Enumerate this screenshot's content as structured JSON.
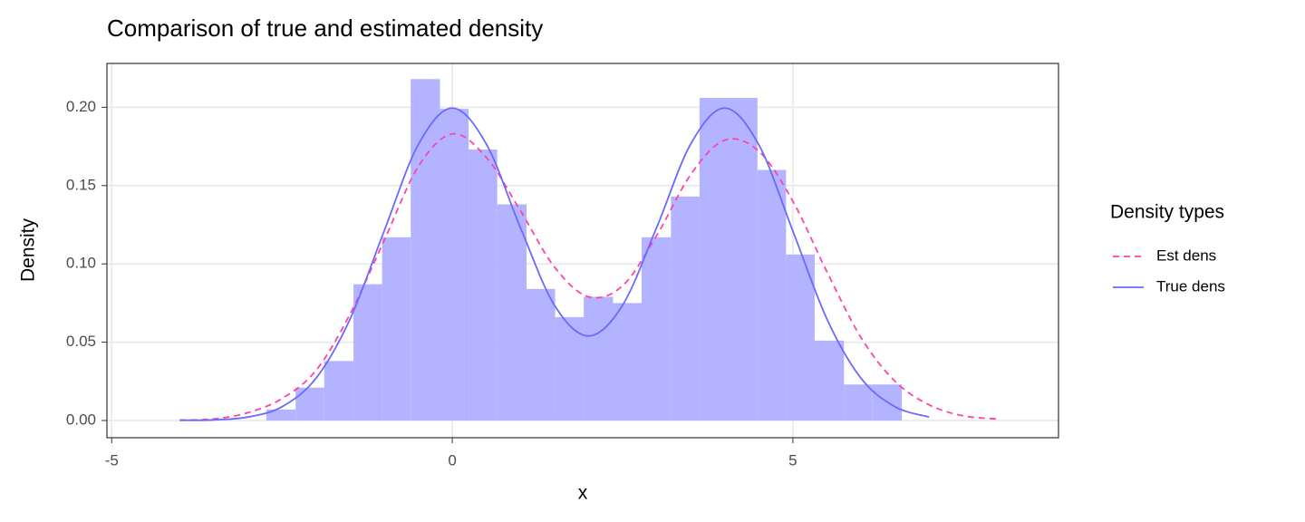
{
  "chart_data": {
    "type": "histogram",
    "title": "Comparison of true and estimated density",
    "x_label": "x",
    "y_label": "Density",
    "legend_title": "Density types",
    "legend_position": "right",
    "grid": true,
    "xlim": [
      -5.07,
      8.9
    ],
    "ylim": [
      -0.011,
      0.228
    ],
    "xticks": [
      -5,
      0,
      5
    ],
    "yticks": [
      {
        "value": 0,
        "label": "0.00"
      },
      {
        "value": 0.05,
        "label": "0.05"
      },
      {
        "value": 0.1,
        "label": "0.10"
      },
      {
        "value": 0.15,
        "label": "0.15"
      },
      {
        "value": 0.2,
        "label": "0.20"
      }
    ],
    "histogram": {
      "color": "#b3b3ff",
      "bins": [
        -2.73,
        -2.3,
        -1.88,
        -1.45,
        -1.03,
        -0.61,
        -0.18,
        0.24,
        0.66,
        1.09,
        1.51,
        1.93,
        2.36,
        2.78,
        3.21,
        3.63,
        4.05,
        4.48,
        4.9,
        5.32,
        5.75,
        6.17,
        6.6
      ],
      "values": [
        0.007,
        0.021,
        0.038,
        0.087,
        0.117,
        0.218,
        0.199,
        0.173,
        0.138,
        0.084,
        0.066,
        0.079,
        0.075,
        0.117,
        0.143,
        0.206,
        0.206,
        0.16,
        0.106,
        0.051,
        0.023,
        0.023
      ]
    },
    "x": [
      -4,
      -3.5,
      -3,
      -2.5,
      -2,
      -1.5,
      -1,
      -0.5,
      0,
      0.5,
      1,
      1.5,
      2,
      2.5,
      3,
      3.5,
      4,
      4.5,
      5,
      5.5,
      6,
      6.5,
      7,
      7.5,
      8
    ],
    "series": [
      {
        "name": "Est dens",
        "color": "#ff44a8",
        "dashed": true,
        "values": [
          0.0003,
          0.001,
          0.005,
          0.014,
          0.032,
          0.068,
          0.115,
          0.162,
          0.183,
          0.168,
          0.134,
          0.098,
          0.079,
          0.086,
          0.118,
          0.157,
          0.179,
          0.172,
          0.14,
          0.095,
          0.053,
          0.025,
          0.01,
          0.003,
          0.001
        ]
      },
      {
        "name": "True dens",
        "color": "#6a6aff",
        "dashed": false,
        "values": [
          0.0001,
          0.0004,
          0.0022,
          0.0088,
          0.027,
          0.0648,
          0.121,
          0.1761,
          0.1995,
          0.1765,
          0.1232,
          0.0736,
          0.054,
          0.0736,
          0.1232,
          0.1765,
          0.1995,
          0.1761,
          0.121,
          0.0648,
          0.027,
          0.0088,
          0.0022,
          null,
          null
        ]
      }
    ]
  }
}
